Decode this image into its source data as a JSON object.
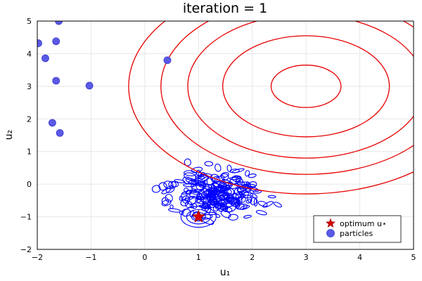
{
  "chart_data": {
    "type": "contour+scatter",
    "title": "iteration = 1",
    "xlabel": "u₁",
    "ylabel": "u₂",
    "xlim": [
      -2,
      5
    ],
    "ylim": [
      -2,
      5
    ],
    "xticks": [
      -2,
      -1,
      0,
      1,
      2,
      3,
      4,
      5
    ],
    "yticks": [
      -2,
      -1,
      0,
      1,
      2,
      3,
      4,
      5
    ],
    "xtick_labels": [
      "−2",
      "−1",
      "0",
      "1",
      "2",
      "3",
      "4",
      "5"
    ],
    "ytick_labels": [
      "−2",
      "−1",
      "0",
      "1",
      "2",
      "3",
      "4",
      "5"
    ],
    "grid": true,
    "legend_position": "bottom-right",
    "optimum": {
      "name": "optimum u⋆",
      "x": 1,
      "y": -1,
      "color": "#d40000",
      "marker": "star"
    },
    "particles": {
      "name": "particles",
      "color": "#5a5ae6",
      "x": [
        -1.98,
        -1.6,
        -1.65,
        -1.85,
        -1.65,
        -1.03,
        -1.72,
        -1.58,
        0.42
      ],
      "y": [
        4.32,
        5.0,
        4.38,
        3.86,
        3.17,
        3.02,
        1.88,
        1.57,
        3.8
      ]
    },
    "objective_contours": {
      "color": "#e60000",
      "center": [
        3,
        3
      ],
      "radii": [
        0.65,
        1.55,
        2.2,
        2.7,
        3.3
      ]
    },
    "noisy_contours": {
      "color": "#0000ff",
      "center": [
        1.3,
        -0.3
      ],
      "spread": [
        1.2,
        0.95
      ]
    },
    "legend": [
      {
        "label": "optimum u⋆",
        "marker": "star",
        "color": "#d40000"
      },
      {
        "label": "particles",
        "marker": "circle",
        "color": "#5a5ae6"
      }
    ]
  }
}
